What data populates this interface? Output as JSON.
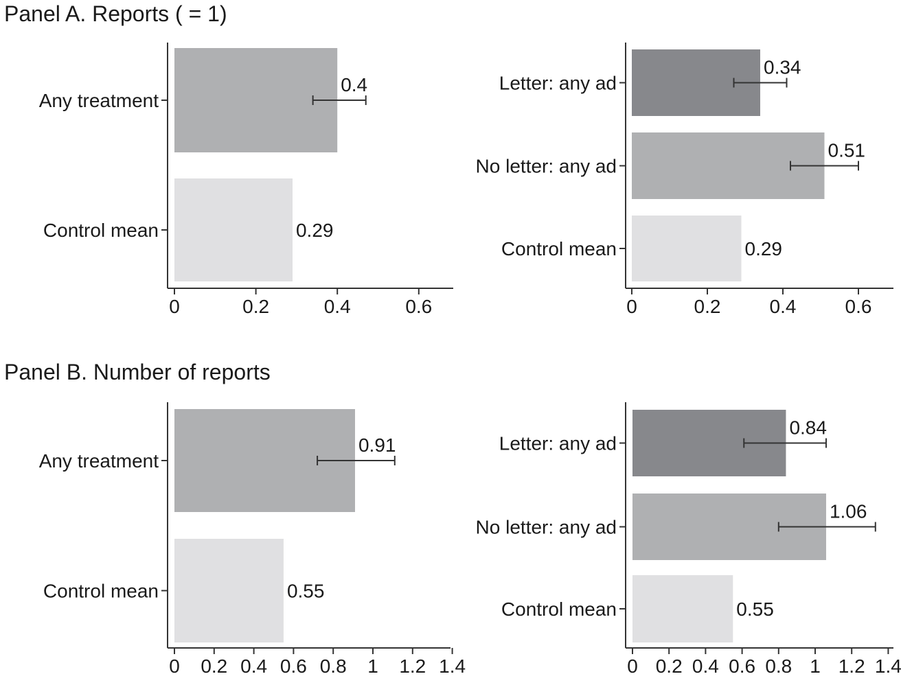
{
  "panels": [
    {
      "title": "Panel A. Reports ( = 1)"
    },
    {
      "title": "Panel B. Number of reports"
    }
  ],
  "colors": {
    "treatment": "#AFB0B2",
    "control": "#E0E0E2",
    "letter": "#87888C",
    "axis": "#333333"
  },
  "chart_data": [
    {
      "type": "bar",
      "panel": "Panel A",
      "orientation": "horizontal",
      "categories": [
        "Any treatment",
        "Control mean"
      ],
      "values": [
        0.4,
        0.29
      ],
      "value_labels": [
        "0.4",
        "0.29"
      ],
      "ci": [
        [
          0.34,
          0.47
        ],
        null
      ],
      "bar_colors": [
        "treatment",
        "control"
      ],
      "xlim": [
        0,
        0.7
      ],
      "xticks": [
        0,
        0.2,
        0.4,
        0.6
      ],
      "xtick_labels": [
        "0",
        "0.2",
        "0.4",
        "0.6"
      ]
    },
    {
      "type": "bar",
      "panel": "Panel A",
      "orientation": "horizontal",
      "categories": [
        "Letter: any ad",
        "No letter: any ad",
        "Control mean"
      ],
      "values": [
        0.34,
        0.51,
        0.29
      ],
      "value_labels": [
        "0.34",
        "0.51",
        "0.29"
      ],
      "ci": [
        [
          0.27,
          0.41
        ],
        [
          0.42,
          0.6
        ],
        null
      ],
      "bar_colors": [
        "letter",
        "treatment",
        "control"
      ],
      "xlim": [
        0,
        0.7
      ],
      "xticks": [
        0,
        0.2,
        0.4,
        0.6
      ],
      "xtick_labels": [
        "0",
        "0.2",
        "0.4",
        "0.6"
      ]
    },
    {
      "type": "bar",
      "panel": "Panel B",
      "orientation": "horizontal",
      "categories": [
        "Any treatment",
        "Control mean"
      ],
      "values": [
        0.91,
        0.55
      ],
      "value_labels": [
        "0.91",
        "0.55"
      ],
      "ci": [
        [
          0.72,
          1.11
        ],
        null
      ],
      "bar_colors": [
        "treatment",
        "control"
      ],
      "xlim": [
        0,
        1.4
      ],
      "xticks": [
        0,
        0.2,
        0.4,
        0.6,
        0.8,
        1,
        1.2,
        1.4
      ],
      "xtick_labels": [
        "0",
        "0.2",
        "0.4",
        "0.6",
        "0.8",
        "1",
        "1.2",
        "1.4"
      ]
    },
    {
      "type": "bar",
      "panel": "Panel B",
      "orientation": "horizontal",
      "categories": [
        "Letter: any ad",
        "No letter: any ad",
        "Control mean"
      ],
      "values": [
        0.84,
        1.06,
        0.55
      ],
      "value_labels": [
        "0.84",
        "1.06",
        "0.55"
      ],
      "ci": [
        [
          0.61,
          1.06
        ],
        [
          0.8,
          1.33
        ],
        null
      ],
      "bar_colors": [
        "letter",
        "treatment",
        "control"
      ],
      "xlim": [
        0,
        1.4
      ],
      "xticks": [
        0,
        0.2,
        0.4,
        0.6,
        0.8,
        1,
        1.2,
        1.4
      ],
      "xtick_labels": [
        "0",
        "0.2",
        "0.4",
        "0.6",
        "0.8",
        "1",
        "1.2",
        "1.4"
      ]
    }
  ]
}
